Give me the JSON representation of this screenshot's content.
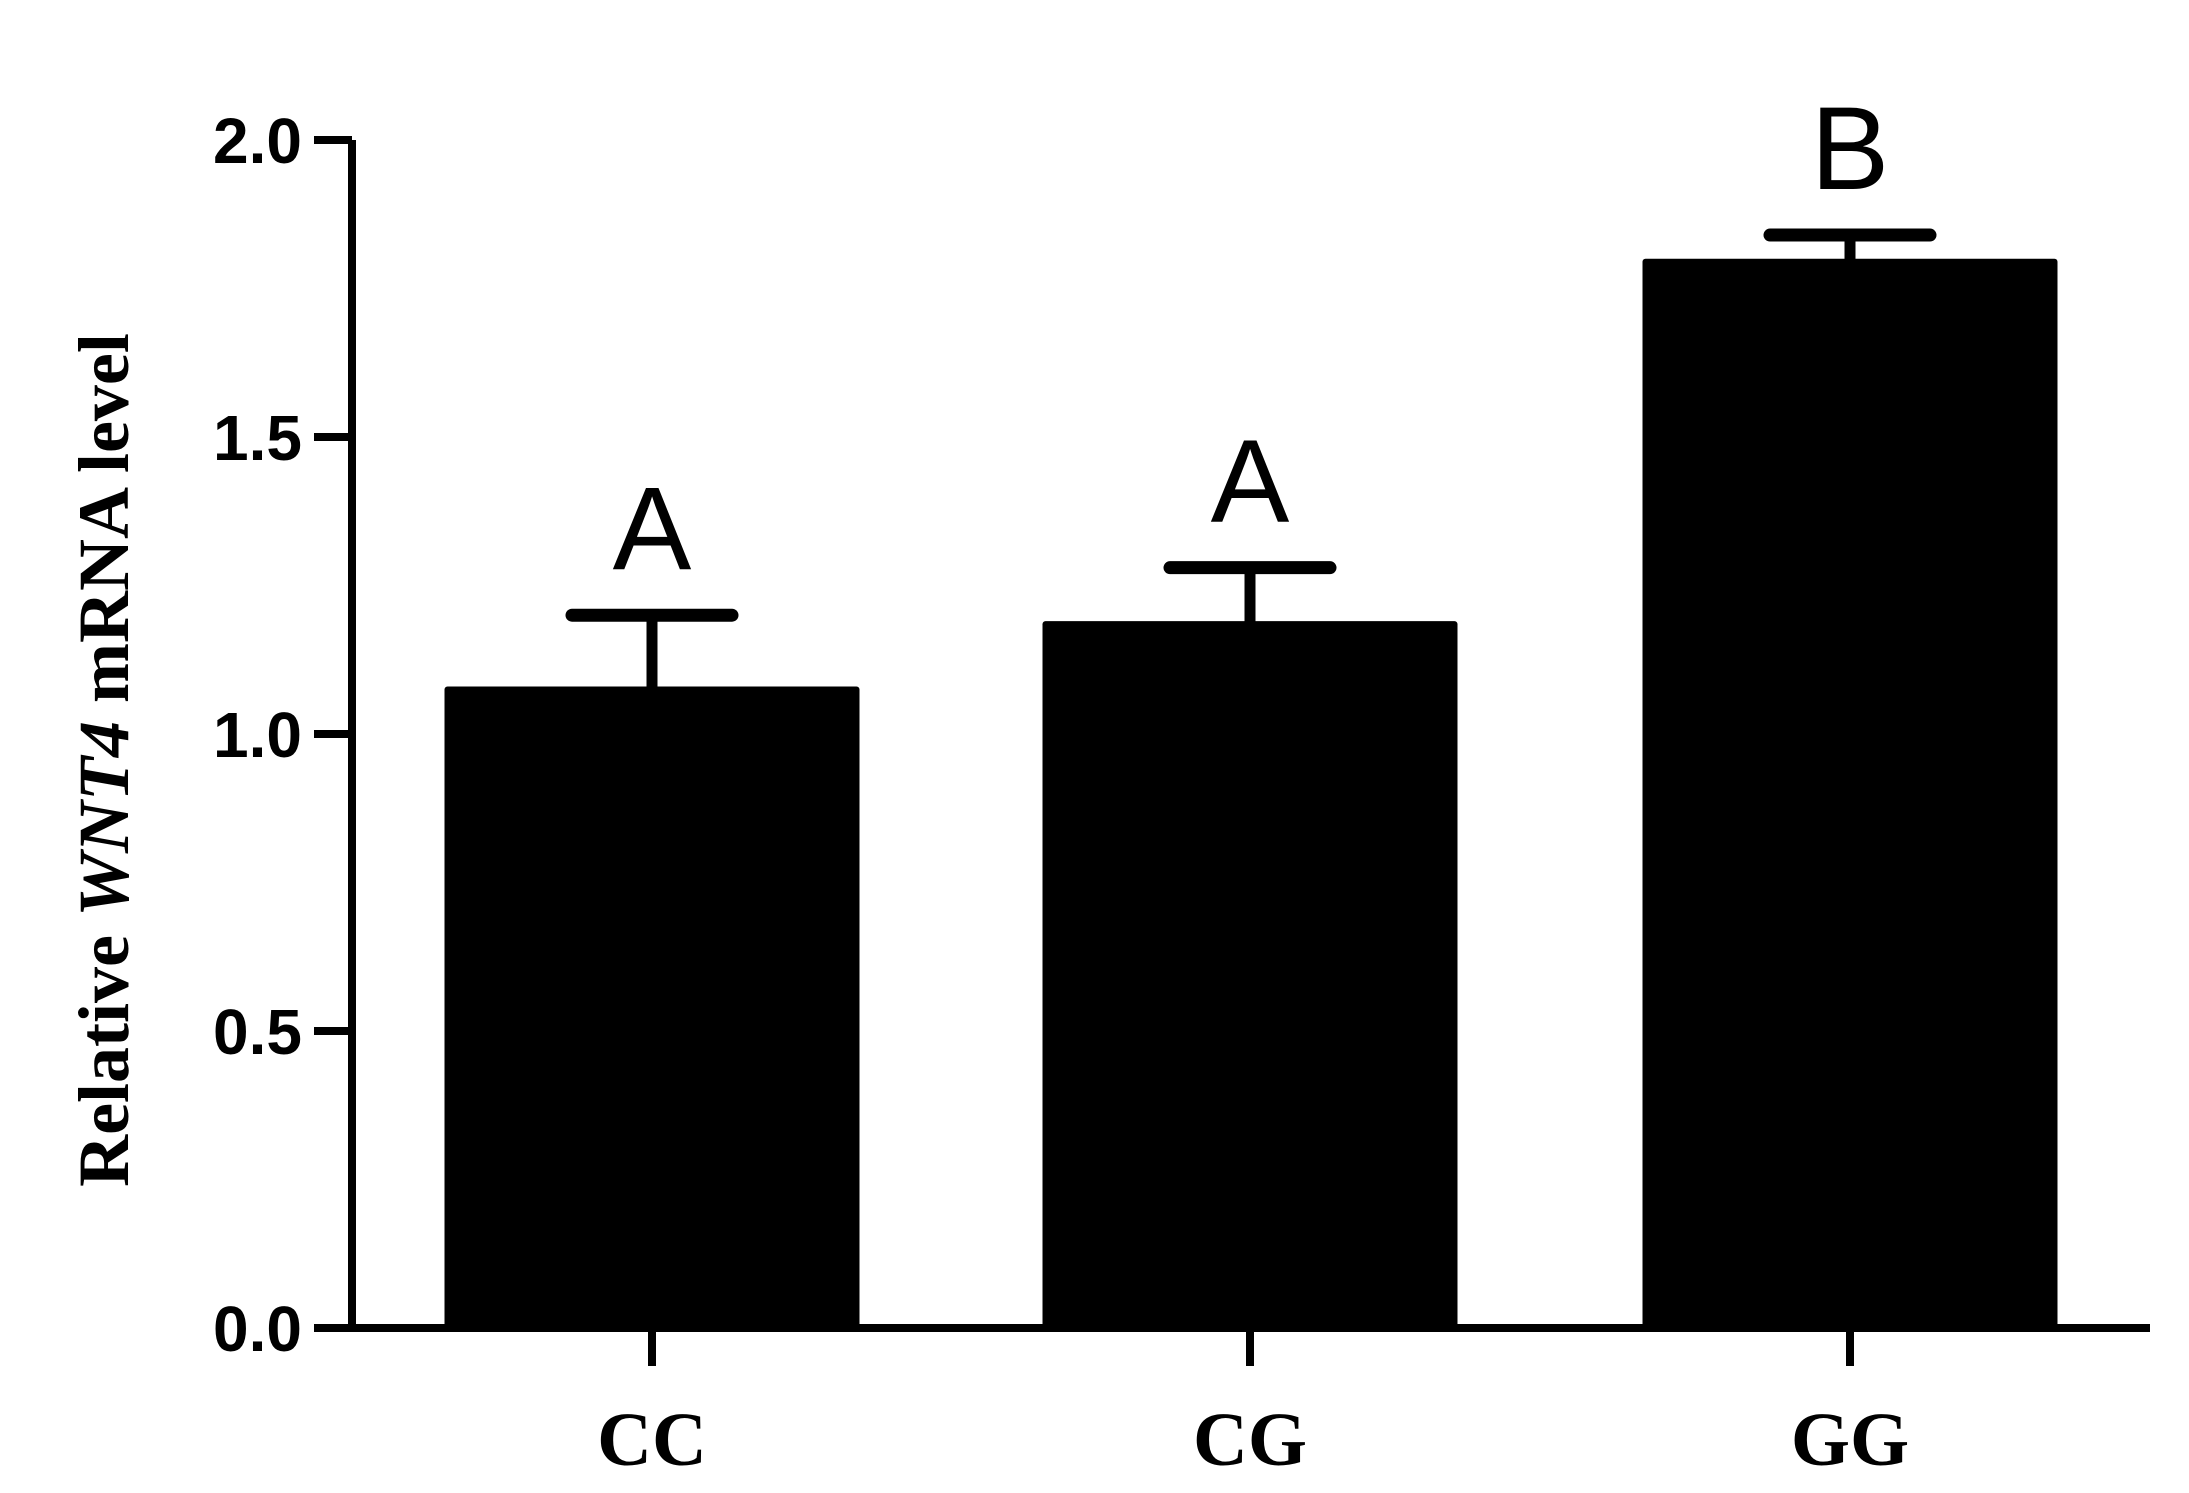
{
  "chart_data": {
    "type": "bar",
    "title": "",
    "xlabel": "",
    "ylabel_parts": {
      "prefix": "Relative ",
      "gene": "WNT4",
      "suffix": " mRNA level"
    },
    "categories": [
      "CC",
      "CG",
      "GG"
    ],
    "values": [
      1.08,
      1.19,
      1.8
    ],
    "errors": [
      0.12,
      0.09,
      0.04
    ],
    "significance": [
      "A",
      "A",
      "B"
    ],
    "ylim": [
      0,
      2.0
    ],
    "yticks": [
      0.0,
      0.5,
      1.0,
      1.5,
      2.0
    ],
    "ytick_labels": [
      "0.0",
      "0.5",
      "1.0",
      "1.5",
      "2.0"
    ],
    "grid": false,
    "legend": "none",
    "bar_color": "#000000"
  }
}
